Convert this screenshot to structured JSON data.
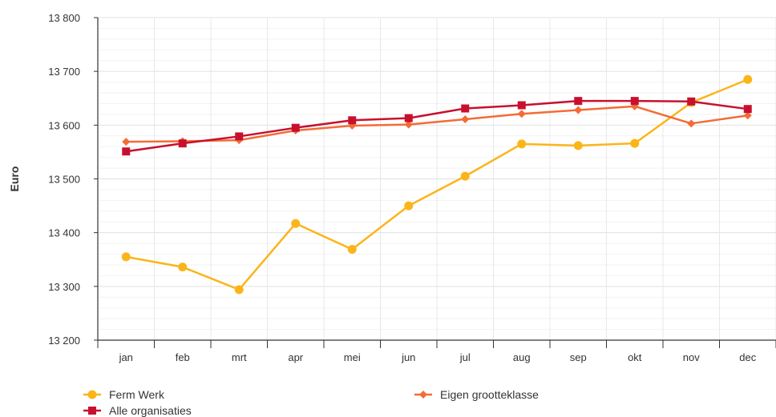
{
  "chart_data": {
    "type": "line",
    "title": "",
    "xlabel": "",
    "ylabel": "Euro",
    "categories": [
      "jan",
      "feb",
      "mrt",
      "apr",
      "mei",
      "jun",
      "jul",
      "aug",
      "sep",
      "okt",
      "nov",
      "dec"
    ],
    "ylim": [
      13200,
      13800
    ],
    "yticks": [
      13200,
      13300,
      13400,
      13500,
      13600,
      13700,
      13800
    ],
    "ytick_labels": [
      "13 200",
      "13 300",
      "13 400",
      "13 500",
      "13 600",
      "13 700",
      "13 800"
    ],
    "grid": true,
    "legend_position": "bottom-left",
    "series": [
      {
        "name": "Ferm Werk",
        "color": "#FBB519",
        "marker": "circle",
        "values": [
          13355,
          13336,
          13294,
          13417,
          13369,
          13450,
          13505,
          13565,
          13562,
          13566,
          13642,
          13685
        ]
      },
      {
        "name": "Eigen grootteklasse",
        "color": "#F36C36",
        "marker": "diamond",
        "values": [
          13569,
          13570,
          13572,
          13590,
          13599,
          13601,
          13611,
          13621,
          13628,
          13635,
          13603,
          13618
        ]
      },
      {
        "name": "Alle organisaties",
        "color": "#C8102E",
        "marker": "square",
        "values": [
          13551,
          13566,
          13579,
          13595,
          13609,
          13613,
          13631,
          13637,
          13645,
          13645,
          13644,
          13630
        ]
      }
    ]
  }
}
